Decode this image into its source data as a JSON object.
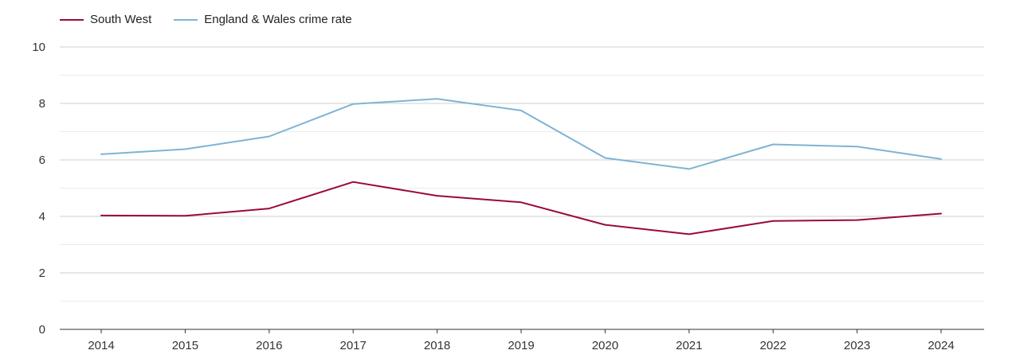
{
  "chart_data": {
    "type": "line",
    "title": "",
    "xlabel": "",
    "ylabel": "",
    "categories": [
      "2014",
      "2015",
      "2016",
      "2017",
      "2018",
      "2019",
      "2020",
      "2021",
      "2022",
      "2023",
      "2024"
    ],
    "ylim": [
      0,
      10
    ],
    "yticks": [
      0,
      2,
      4,
      6,
      8,
      10
    ],
    "grid": true,
    "legend_position": "top-left",
    "series": [
      {
        "name": "South West",
        "color": "#9b0a34",
        "values": [
          4.03,
          4.02,
          4.28,
          5.22,
          4.73,
          4.5,
          3.7,
          3.37,
          3.84,
          3.87,
          4.1
        ]
      },
      {
        "name": "England & Wales crime rate",
        "color": "#7fb3d5",
        "values": [
          6.2,
          6.38,
          6.83,
          7.98,
          8.16,
          7.75,
          6.07,
          5.68,
          6.55,
          6.47,
          6.03
        ]
      }
    ]
  }
}
